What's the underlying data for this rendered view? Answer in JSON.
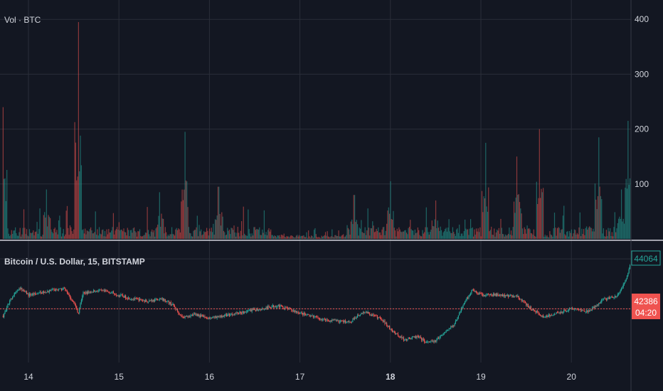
{
  "theme": {
    "background": "#131722",
    "grid": "#2a2e39",
    "axis_text": "#d1d4dc",
    "up": "#26a69a",
    "down": "#ef5350",
    "separator": "#d1d4dc",
    "price_badge": "#ef5350",
    "last_badge_border": "#26a69a"
  },
  "volume_pane": {
    "label": "Vol · BTC",
    "y_ticks": [
      "100",
      "200",
      "300",
      "400"
    ],
    "ylim": [
      0,
      450
    ]
  },
  "price_pane": {
    "label": "Bitcoin / U.S. Dollar, 15, BITSTAMP",
    "last_price": "44064",
    "current_price": "42386",
    "countdown": "04:20",
    "ylim": [
      40700,
      44400
    ]
  },
  "x_axis": {
    "ticks": [
      "14",
      "15",
      "16",
      "17",
      "18",
      "19",
      "20"
    ],
    "bold_tick": "18"
  },
  "chart_data": {
    "type": "candlestick",
    "x_unit": "day",
    "x_range": [
      13.72,
      20.67
    ],
    "price_anchors": [
      [
        13.72,
        42150
      ],
      [
        13.8,
        42700
      ],
      [
        13.9,
        43100
      ],
      [
        14.0,
        42850
      ],
      [
        14.1,
        42900
      ],
      [
        14.25,
        43000
      ],
      [
        14.4,
        43050
      ],
      [
        14.5,
        42600
      ],
      [
        14.55,
        42250
      ],
      [
        14.6,
        42900
      ],
      [
        14.75,
        43000
      ],
      [
        14.9,
        42950
      ],
      [
        15.1,
        42750
      ],
      [
        15.3,
        42650
      ],
      [
        15.5,
        42700
      ],
      [
        15.6,
        42500
      ],
      [
        15.7,
        42100
      ],
      [
        15.85,
        42200
      ],
      [
        16.0,
        42050
      ],
      [
        16.15,
        42150
      ],
      [
        16.4,
        42300
      ],
      [
        16.6,
        42400
      ],
      [
        16.75,
        42500
      ],
      [
        16.9,
        42350
      ],
      [
        17.1,
        42150
      ],
      [
        17.3,
        42000
      ],
      [
        17.55,
        41950
      ],
      [
        17.7,
        42300
      ],
      [
        17.9,
        42050
      ],
      [
        18.0,
        41700
      ],
      [
        18.15,
        41350
      ],
      [
        18.3,
        41450
      ],
      [
        18.4,
        41250
      ],
      [
        18.5,
        41300
      ],
      [
        18.6,
        41600
      ],
      [
        18.7,
        41850
      ],
      [
        18.8,
        42500
      ],
      [
        18.9,
        43000
      ],
      [
        19.0,
        42850
      ],
      [
        19.2,
        42850
      ],
      [
        19.4,
        42800
      ],
      [
        19.55,
        42400
      ],
      [
        19.7,
        42100
      ],
      [
        19.85,
        42250
      ],
      [
        20.0,
        42400
      ],
      [
        20.2,
        42300
      ],
      [
        20.35,
        42700
      ],
      [
        20.5,
        42800
      ],
      [
        20.6,
        43300
      ],
      [
        20.67,
        44064
      ]
    ],
    "volume_spikes": [
      [
        14.55,
        395
      ],
      [
        13.72,
        240
      ],
      [
        15.73,
        195
      ],
      [
        20.63,
        215
      ],
      [
        19.65,
        200
      ],
      [
        20.3,
        185
      ],
      [
        19.05,
        175
      ],
      [
        19.4,
        150
      ],
      [
        18.0,
        105
      ],
      [
        16.1,
        95
      ],
      [
        14.2,
        90
      ],
      [
        15.45,
        85
      ],
      [
        17.6,
        80
      ],
      [
        20.55,
        90
      ],
      [
        18.5,
        70
      ]
    ],
    "quiet_volume_windows": [
      [
        16.7,
        17.5
      ],
      [
        19.6,
        19.8
      ]
    ]
  }
}
